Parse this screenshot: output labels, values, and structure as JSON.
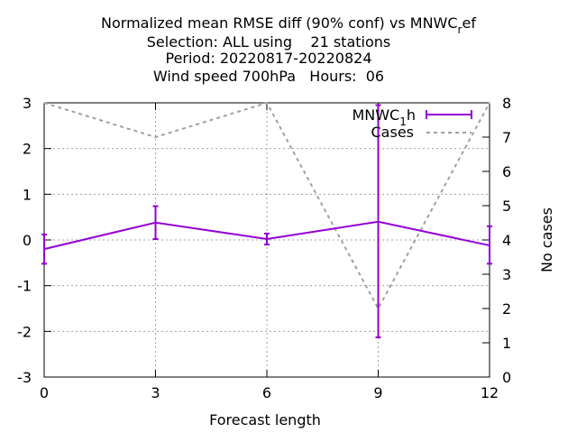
{
  "title_lines": [
    "Normalized mean RMSE diff (90% conf) vs MNWC",
    "Selection: ALL using    21 stations",
    "Period: 20220817-20220824",
    "Wind speed 700hPa   Hours:  06"
  ],
  "title_subscript": "r",
  "title_suffix": "ef",
  "chart_data": {
    "type": "line",
    "xlabel": "Forecast length",
    "ylabel": "",
    "y2label": "No cases",
    "x": [
      0,
      3,
      6,
      9,
      12
    ],
    "xticks": [
      "0",
      "3",
      "6",
      "9",
      "12"
    ],
    "xlim": [
      0,
      12
    ],
    "ylim": [
      -3,
      3
    ],
    "yticks": [
      "-3",
      "-2",
      "-1",
      "0",
      "1",
      "2",
      "3"
    ],
    "y2lim": [
      0,
      8
    ],
    "y2ticks": [
      "0",
      "1",
      "2",
      "3",
      "4",
      "5",
      "6",
      "7",
      "8"
    ],
    "grid": true,
    "legend_position": "top-right",
    "series": [
      {
        "name_main": "MNWC",
        "name_sub": "1",
        "name_suffix": "h",
        "axis": "y",
        "color": "#9400d3",
        "style": "solid-errorbars",
        "values": [
          -0.2,
          0.38,
          0.02,
          0.4,
          -0.12
        ],
        "err_low": [
          -0.52,
          0.02,
          -0.1,
          -2.13,
          -0.52
        ],
        "err_high": [
          0.12,
          0.74,
          0.14,
          2.95,
          0.3
        ]
      },
      {
        "name": "Cases",
        "axis": "y2",
        "color": "#a0a0a0",
        "style": "dashed",
        "values": [
          8,
          7,
          8,
          2,
          8
        ]
      }
    ]
  }
}
